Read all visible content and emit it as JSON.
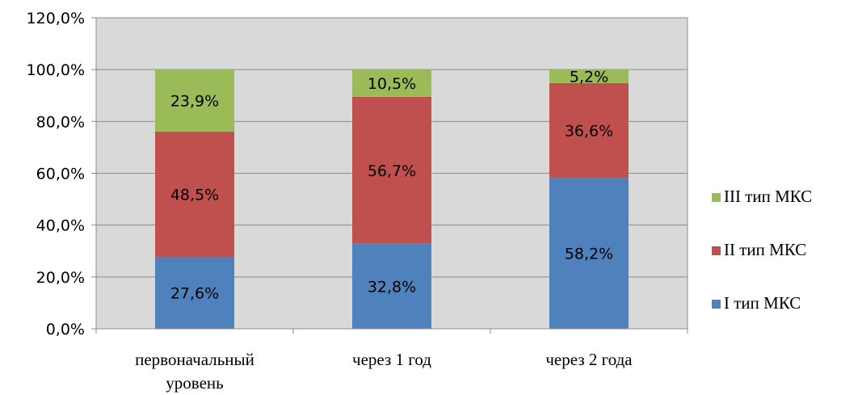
{
  "chart_data": {
    "type": "bar",
    "stacked": true,
    "categories": [
      "первоначальный уровень",
      "через 1 год",
      "через 2 года"
    ],
    "series": [
      {
        "name": "I тип МКС",
        "values": [
          27.6,
          32.8,
          58.2
        ],
        "labels": [
          "27,6%",
          "32,8%",
          "58,2%"
        ],
        "color": "#4f81bd"
      },
      {
        "name": "II тип МКС",
        "values": [
          48.5,
          56.7,
          36.6
        ],
        "labels": [
          "48,5%",
          "56,7%",
          "36,6%"
        ],
        "color": "#c0504d"
      },
      {
        "name": "III тип МКС",
        "values": [
          23.9,
          10.5,
          5.2
        ],
        "labels": [
          "23,9%",
          "10,5%",
          "5,2%"
        ],
        "color": "#9bbb59"
      }
    ],
    "y_ticks": [
      "0,0%",
      "20,0%",
      "40,0%",
      "60,0%",
      "80,0%",
      "100,0%",
      "120,0%"
    ],
    "ylim": [
      0,
      120
    ],
    "grid": true,
    "plot_background": "#d9d9d9",
    "legend_position": "right",
    "legend_order": [
      "III тип МКС",
      "II тип МКС",
      "I тип МКС"
    ]
  }
}
